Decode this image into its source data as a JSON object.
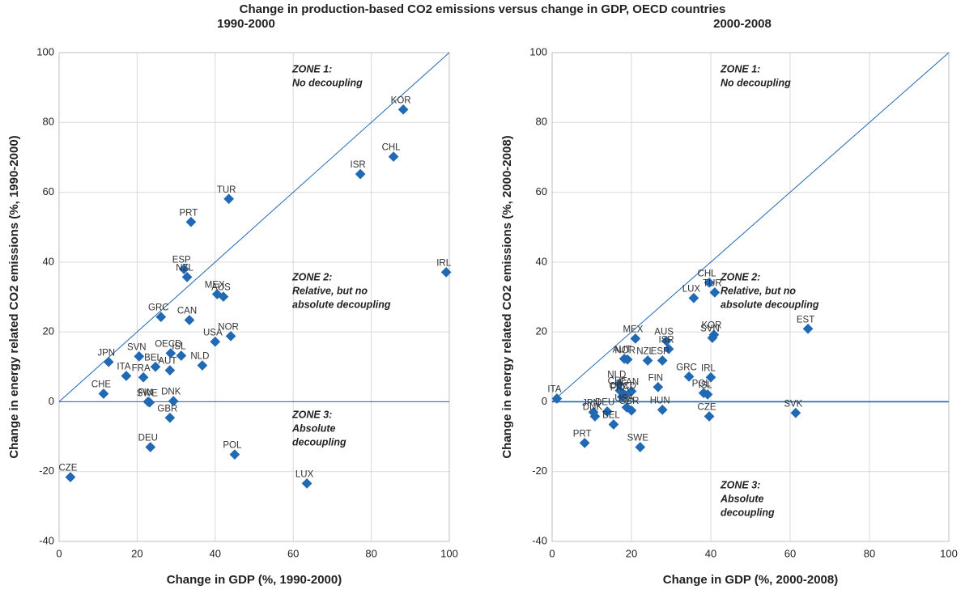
{
  "title": "Change in production-based CO2 emissions versus change in GDP, OECD countries",
  "chart_data": [
    {
      "type": "scatter",
      "subtitle": "1990-2000",
      "color": "#2169b3",
      "xlabel": "Change in GDP (%, 1990-2000)",
      "ylabel": "Change in energy related CO2 emissions (%, 1990-2000)",
      "xlim": [
        0,
        100
      ],
      "ylim": [
        -40,
        100
      ],
      "xticks": [
        0,
        20,
        40,
        60,
        80,
        100
      ],
      "yticks": [
        -40,
        -20,
        0,
        20,
        40,
        60,
        80,
        100
      ],
      "grid": true,
      "categories": [
        "CZE",
        "KOR",
        "CHL",
        "ISR",
        "TUR",
        "PRT",
        "ESP",
        "NZL",
        "IRL",
        "MEX",
        "AUS",
        "GRC",
        "CAN",
        "USA",
        "NOR",
        "JPN",
        "SVN",
        "OECD",
        "ISL",
        "BEL",
        "NLD",
        "ITA",
        "FRA",
        "AUT",
        "CHE",
        "FIN",
        "SWE",
        "DNK",
        "GBR",
        "DEU",
        "POL",
        "LUX"
      ],
      "x": [
        2.9,
        88.2,
        85.7,
        77.2,
        43.5,
        33.8,
        32.0,
        32.8,
        99.2,
        40.5,
        42.1,
        26.1,
        33.4,
        40.0,
        44.0,
        12.7,
        20.5,
        28.6,
        31.3,
        24.7,
        36.7,
        17.2,
        21.6,
        28.4,
        11.4,
        22.8,
        23.2,
        29.3,
        28.4,
        23.4,
        45.0,
        63.5
      ],
      "values": [
        -21.6,
        83.7,
        70.2,
        65.2,
        58.1,
        51.5,
        38.0,
        35.7,
        37.1,
        30.8,
        30.1,
        24.3,
        23.4,
        17.2,
        18.8,
        11.4,
        13.0,
        13.9,
        13.2,
        10.0,
        10.4,
        7.4,
        7.0,
        9.0,
        2.3,
        0.0,
        -0.2,
        0.2,
        -4.6,
        -13.0,
        -15.1,
        -23.4
      ],
      "annotations": [
        [
          "ZONE 1:",
          "No decoupling"
        ],
        [
          "ZONE 2:",
          "Relative, but no",
          "absolute decoupling"
        ],
        [
          "ZONE 3:",
          "Absolute",
          "decoupling"
        ]
      ]
    },
    {
      "type": "scatter",
      "subtitle": "2000-2008",
      "color": "#2169b3",
      "xlabel": "Change in GDP (%, 2000-2008)",
      "ylabel": "Change in energy related CO2 emissions (%, 2000-2008)",
      "xlim": [
        0,
        100
      ],
      "ylim": [
        -40,
        100
      ],
      "xticks": [
        0,
        20,
        40,
        60,
        80,
        100
      ],
      "yticks": [
        -40,
        -20,
        0,
        20,
        40,
        60,
        80,
        100
      ],
      "grid": true,
      "categories": [
        "KOR",
        "SVN",
        "EST",
        "CHL",
        "TUR",
        "LUX",
        "MEX",
        "AUS",
        "ISR",
        "AUT",
        "NZL",
        "NOR",
        "ESP",
        "GRC",
        "IRL",
        "NLD",
        "CAN",
        "FIN",
        "CHE",
        "FRA",
        "OECD",
        "ITA",
        "USA",
        "JPN",
        "DNK",
        "DEU",
        "GBR",
        "BEL",
        "PRT",
        "SWE",
        "HUN",
        "POL",
        "ISL",
        "CZE",
        "SVK"
      ],
      "x": [
        40.8,
        40.4,
        64.5,
        39.6,
        41.0,
        35.7,
        21.0,
        28.8,
        29.4,
        18.2,
        24.1,
        19.0,
        27.8,
        34.5,
        40.0,
        16.9,
        20.0,
        26.7,
        17.1,
        17.6,
        18.4,
        1.2,
        18.8,
        10.4,
        10.8,
        13.9,
        20.0,
        15.5,
        8.2,
        22.2,
        27.8,
        38.2,
        39.2,
        39.6,
        61.4
      ],
      "values": [
        19.2,
        18.3,
        20.9,
        34.1,
        31.3,
        29.7,
        18.1,
        17.4,
        15.1,
        12.3,
        11.8,
        12.1,
        11.8,
        7.2,
        7.0,
        5.1,
        3.0,
        4.2,
        3.2,
        1.4,
        1.9,
        0.9,
        -1.6,
        -3.0,
        -4.2,
        -2.8,
        -2.5,
        -6.5,
        -11.8,
        -13.0,
        -2.3,
        2.5,
        2.1,
        -4.2,
        -3.2
      ],
      "annotations": [
        [
          "ZONE 1:",
          "No decoupling"
        ],
        [
          "ZONE 2:",
          "Relative, but no",
          "absolute decoupling"
        ],
        [
          "ZONE 3:",
          "Absolute",
          "decoupling"
        ]
      ]
    }
  ]
}
